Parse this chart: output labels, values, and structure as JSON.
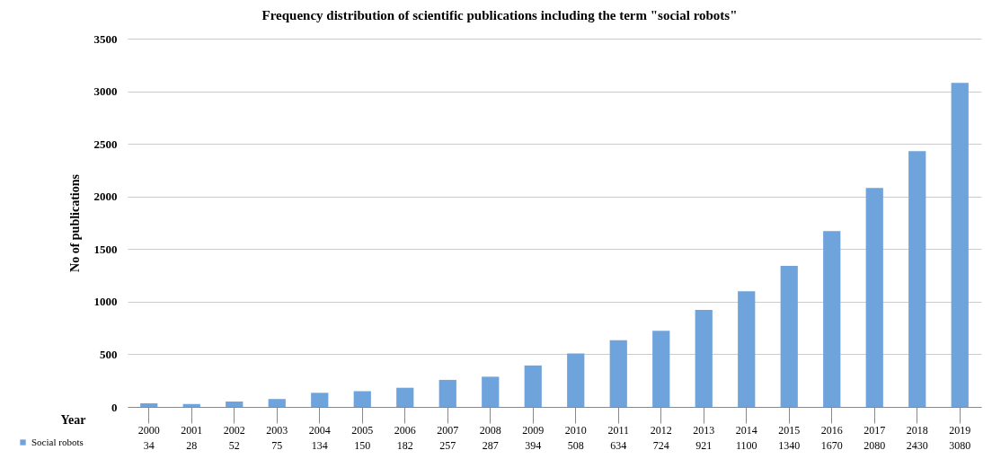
{
  "chart_data": {
    "type": "bar",
    "title": "Frequency distribution of scientific publications including the term \"social robots\"",
    "xlabel": "Year",
    "ylabel": "No of publications",
    "categories": [
      "2000",
      "2001",
      "2002",
      "2003",
      "2004",
      "2005",
      "2006",
      "2007",
      "2008",
      "2009",
      "2010",
      "2011",
      "2012",
      "2013",
      "2014",
      "2015",
      "2016",
      "2017",
      "2018",
      "2019"
    ],
    "series": [
      {
        "name": "Social robots",
        "color": "#6fa3dc",
        "values": [
          34,
          28,
          52,
          75,
          134,
          150,
          182,
          257,
          287,
          394,
          508,
          634,
          724,
          921,
          1100,
          1340,
          1670,
          2080,
          2430,
          3080
        ]
      }
    ],
    "ylim": [
      0,
      3500
    ],
    "yticks": [
      0,
      500,
      1000,
      1500,
      2000,
      2500,
      3000,
      3500
    ],
    "grid": "y",
    "legend": "bottom left",
    "data_labels": true
  }
}
